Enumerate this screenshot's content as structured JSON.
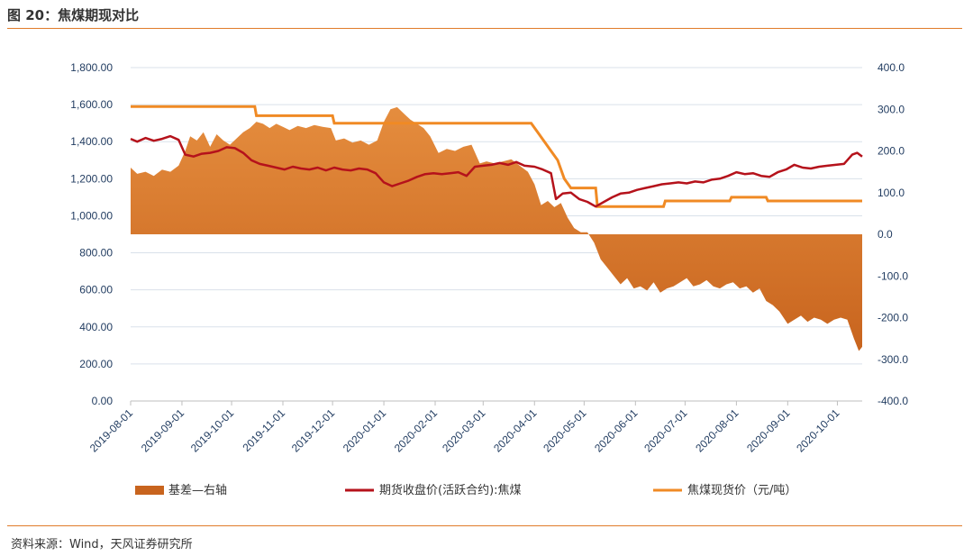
{
  "figure": {
    "title": "图 20：焦煤期现对比",
    "source": "资料来源：Wind，天风证券研究所"
  },
  "colors": {
    "basis": "#c8641e",
    "basis_light": "#e58d3e",
    "futures": "#b5121b",
    "spot": "#f08a24",
    "grid": "#d9e1ea",
    "rule": "#e07b2a"
  },
  "chart_data": {
    "type": "area+line",
    "left_axis": {
      "ylim": [
        0,
        1800
      ],
      "ticks": [
        "0.00",
        "200.00",
        "400.00",
        "600.00",
        "800.00",
        "1,000.00",
        "1,200.00",
        "1,400.00",
        "1,600.00",
        "1,800.00"
      ]
    },
    "right_axis": {
      "ylim": [
        -400,
        400
      ],
      "ticks": [
        "-400.0",
        "-300.0",
        "-200.0",
        "-100.0",
        "0.0",
        "100.0",
        "200.0",
        "300.0",
        "400.0"
      ]
    },
    "x_ticks": [
      "2019-08-01",
      "2019-09-01",
      "2019-10-01",
      "2019-11-01",
      "2019-12-01",
      "2020-01-01",
      "2020-02-01",
      "2020-03-01",
      "2020-04-01",
      "2020-05-01",
      "2020-06-01",
      "2020-07-01",
      "2020-08-01",
      "2020-09-01",
      "2020-10-01"
    ],
    "x_range": [
      "2019-08-01",
      "2020-10-16"
    ],
    "grid": true,
    "legend_position": "bottom",
    "legend": [
      "基差—右轴",
      "期货收盘价(活跃合约):焦煤",
      "焦煤现货价（元/吨）"
    ],
    "series": [
      {
        "name": "基差—右轴",
        "axis": "right",
        "kind": "area",
        "points": [
          [
            "2019-08-01",
            160
          ],
          [
            "2019-08-05",
            145
          ],
          [
            "2019-08-10",
            150
          ],
          [
            "2019-08-15",
            140
          ],
          [
            "2019-08-20",
            155
          ],
          [
            "2019-08-25",
            150
          ],
          [
            "2019-08-30",
            165
          ],
          [
            "2019-09-03",
            200
          ],
          [
            "2019-09-06",
            235
          ],
          [
            "2019-09-10",
            225
          ],
          [
            "2019-09-14",
            245
          ],
          [
            "2019-09-18",
            210
          ],
          [
            "2019-09-22",
            240
          ],
          [
            "2019-09-26",
            225
          ],
          [
            "2019-09-30",
            215
          ],
          [
            "2019-10-04",
            230
          ],
          [
            "2019-10-08",
            245
          ],
          [
            "2019-10-12",
            255
          ],
          [
            "2019-10-16",
            270
          ],
          [
            "2019-10-20",
            265
          ],
          [
            "2019-10-24",
            255
          ],
          [
            "2019-10-28",
            265
          ],
          [
            "2019-11-01",
            258
          ],
          [
            "2019-11-05",
            250
          ],
          [
            "2019-11-10",
            260
          ],
          [
            "2019-11-15",
            255
          ],
          [
            "2019-11-20",
            262
          ],
          [
            "2019-11-25",
            258
          ],
          [
            "2019-11-30",
            255
          ],
          [
            "2019-12-03",
            225
          ],
          [
            "2019-12-08",
            230
          ],
          [
            "2019-12-13",
            220
          ],
          [
            "2019-12-18",
            225
          ],
          [
            "2019-12-23",
            215
          ],
          [
            "2019-12-28",
            225
          ],
          [
            "2020-01-01",
            270
          ],
          [
            "2020-01-05",
            300
          ],
          [
            "2020-01-09",
            305
          ],
          [
            "2020-01-13",
            290
          ],
          [
            "2020-01-17",
            275
          ],
          [
            "2020-01-21",
            265
          ],
          [
            "2020-01-25",
            255
          ],
          [
            "2020-01-29",
            235
          ],
          [
            "2020-02-03",
            195
          ],
          [
            "2020-02-08",
            205
          ],
          [
            "2020-02-13",
            200
          ],
          [
            "2020-02-18",
            210
          ],
          [
            "2020-02-23",
            215
          ],
          [
            "2020-02-28",
            170
          ],
          [
            "2020-03-03",
            175
          ],
          [
            "2020-03-08",
            170
          ],
          [
            "2020-03-13",
            175
          ],
          [
            "2020-03-18",
            180
          ],
          [
            "2020-03-23",
            165
          ],
          [
            "2020-03-28",
            150
          ],
          [
            "2020-04-01",
            120
          ],
          [
            "2020-04-05",
            70
          ],
          [
            "2020-04-09",
            80
          ],
          [
            "2020-04-13",
            65
          ],
          [
            "2020-04-17",
            75
          ],
          [
            "2020-04-21",
            40
          ],
          [
            "2020-04-25",
            15
          ],
          [
            "2020-04-29",
            5
          ],
          [
            "2020-05-03",
            5
          ],
          [
            "2020-05-07",
            -20
          ],
          [
            "2020-05-11",
            -60
          ],
          [
            "2020-05-15",
            -80
          ],
          [
            "2020-05-19",
            -100
          ],
          [
            "2020-05-23",
            -120
          ],
          [
            "2020-05-27",
            -105
          ],
          [
            "2020-05-31",
            -130
          ],
          [
            "2020-06-04",
            -125
          ],
          [
            "2020-06-08",
            -135
          ],
          [
            "2020-06-12",
            -115
          ],
          [
            "2020-06-16",
            -140
          ],
          [
            "2020-06-20",
            -130
          ],
          [
            "2020-06-24",
            -125
          ],
          [
            "2020-06-28",
            -115
          ],
          [
            "2020-07-02",
            -105
          ],
          [
            "2020-07-06",
            -125
          ],
          [
            "2020-07-10",
            -120
          ],
          [
            "2020-07-14",
            -110
          ],
          [
            "2020-07-18",
            -125
          ],
          [
            "2020-07-22",
            -130
          ],
          [
            "2020-07-26",
            -120
          ],
          [
            "2020-07-30",
            -115
          ],
          [
            "2020-08-03",
            -130
          ],
          [
            "2020-08-07",
            -125
          ],
          [
            "2020-08-11",
            -140
          ],
          [
            "2020-08-15",
            -130
          ],
          [
            "2020-08-19",
            -160
          ],
          [
            "2020-08-23",
            -170
          ],
          [
            "2020-08-27",
            -185
          ],
          [
            "2020-09-01",
            -215
          ],
          [
            "2020-09-05",
            -205
          ],
          [
            "2020-09-09",
            -195
          ],
          [
            "2020-09-13",
            -210
          ],
          [
            "2020-09-17",
            -200
          ],
          [
            "2020-09-21",
            -205
          ],
          [
            "2020-09-25",
            -215
          ],
          [
            "2020-09-29",
            -205
          ],
          [
            "2020-10-03",
            -200
          ],
          [
            "2020-10-07",
            -205
          ],
          [
            "2020-10-11",
            -250
          ],
          [
            "2020-10-14",
            -280
          ],
          [
            "2020-10-16",
            -270
          ]
        ]
      },
      {
        "name": "期货收盘价(活跃合约):焦煤",
        "axis": "left",
        "kind": "line",
        "points": [
          [
            "2019-08-01",
            1415
          ],
          [
            "2019-08-05",
            1400
          ],
          [
            "2019-08-10",
            1420
          ],
          [
            "2019-08-15",
            1405
          ],
          [
            "2019-08-20",
            1415
          ],
          [
            "2019-08-25",
            1430
          ],
          [
            "2019-08-30",
            1410
          ],
          [
            "2019-09-03",
            1330
          ],
          [
            "2019-09-08",
            1320
          ],
          [
            "2019-09-13",
            1335
          ],
          [
            "2019-09-18",
            1340
          ],
          [
            "2019-09-23",
            1350
          ],
          [
            "2019-09-28",
            1370
          ],
          [
            "2019-10-03",
            1365
          ],
          [
            "2019-10-08",
            1340
          ],
          [
            "2019-10-13",
            1300
          ],
          [
            "2019-10-18",
            1280
          ],
          [
            "2019-10-23",
            1270
          ],
          [
            "2019-10-28",
            1260
          ],
          [
            "2019-11-02",
            1250
          ],
          [
            "2019-11-07",
            1265
          ],
          [
            "2019-11-12",
            1255
          ],
          [
            "2019-11-17",
            1250
          ],
          [
            "2019-11-22",
            1260
          ],
          [
            "2019-11-27",
            1245
          ],
          [
            "2019-12-02",
            1260
          ],
          [
            "2019-12-07",
            1250
          ],
          [
            "2019-12-12",
            1245
          ],
          [
            "2019-12-17",
            1255
          ],
          [
            "2019-12-22",
            1250
          ],
          [
            "2019-12-27",
            1230
          ],
          [
            "2020-01-01",
            1180
          ],
          [
            "2020-01-06",
            1160
          ],
          [
            "2020-01-11",
            1175
          ],
          [
            "2020-01-16",
            1190
          ],
          [
            "2020-01-21",
            1210
          ],
          [
            "2020-01-26",
            1225
          ],
          [
            "2020-01-31",
            1230
          ],
          [
            "2020-02-05",
            1225
          ],
          [
            "2020-02-10",
            1230
          ],
          [
            "2020-02-15",
            1235
          ],
          [
            "2020-02-20",
            1215
          ],
          [
            "2020-02-25",
            1265
          ],
          [
            "2020-03-01",
            1270
          ],
          [
            "2020-03-06",
            1275
          ],
          [
            "2020-03-11",
            1285
          ],
          [
            "2020-03-16",
            1275
          ],
          [
            "2020-03-21",
            1290
          ],
          [
            "2020-03-26",
            1270
          ],
          [
            "2020-04-01",
            1265
          ],
          [
            "2020-04-06",
            1250
          ],
          [
            "2020-04-11",
            1230
          ],
          [
            "2020-04-14",
            1090
          ],
          [
            "2020-04-18",
            1120
          ],
          [
            "2020-04-23",
            1125
          ],
          [
            "2020-04-28",
            1090
          ],
          [
            "2020-05-03",
            1075
          ],
          [
            "2020-05-08",
            1050
          ],
          [
            "2020-05-13",
            1075
          ],
          [
            "2020-05-18",
            1100
          ],
          [
            "2020-05-23",
            1120
          ],
          [
            "2020-05-28",
            1125
          ],
          [
            "2020-06-02",
            1140
          ],
          [
            "2020-06-07",
            1150
          ],
          [
            "2020-06-12",
            1160
          ],
          [
            "2020-06-17",
            1170
          ],
          [
            "2020-06-22",
            1175
          ],
          [
            "2020-06-27",
            1180
          ],
          [
            "2020-07-02",
            1175
          ],
          [
            "2020-07-07",
            1185
          ],
          [
            "2020-07-12",
            1180
          ],
          [
            "2020-07-17",
            1195
          ],
          [
            "2020-07-22",
            1200
          ],
          [
            "2020-07-27",
            1215
          ],
          [
            "2020-08-01",
            1235
          ],
          [
            "2020-08-06",
            1225
          ],
          [
            "2020-08-11",
            1230
          ],
          [
            "2020-08-16",
            1215
          ],
          [
            "2020-08-21",
            1210
          ],
          [
            "2020-08-26",
            1235
          ],
          [
            "2020-08-31",
            1250
          ],
          [
            "2020-09-05",
            1275
          ],
          [
            "2020-09-10",
            1260
          ],
          [
            "2020-09-15",
            1255
          ],
          [
            "2020-09-20",
            1265
          ],
          [
            "2020-09-25",
            1270
          ],
          [
            "2020-09-30",
            1275
          ],
          [
            "2020-10-05",
            1280
          ],
          [
            "2020-10-10",
            1330
          ],
          [
            "2020-10-13",
            1340
          ],
          [
            "2020-10-16",
            1320
          ]
        ]
      },
      {
        "name": "焦煤现货价（元/吨）",
        "axis": "left",
        "kind": "step",
        "points": [
          [
            "2019-08-01",
            1590
          ],
          [
            "2019-10-15",
            1590
          ],
          [
            "2019-10-16",
            1540
          ],
          [
            "2019-12-01",
            1540
          ],
          [
            "2019-12-02",
            1500
          ],
          [
            "2020-03-30",
            1500
          ],
          [
            "2020-04-03",
            1450
          ],
          [
            "2020-04-07",
            1400
          ],
          [
            "2020-04-11",
            1350
          ],
          [
            "2020-04-15",
            1300
          ],
          [
            "2020-04-19",
            1200
          ],
          [
            "2020-04-23",
            1150
          ],
          [
            "2020-05-08",
            1150
          ],
          [
            "2020-05-09",
            1050
          ],
          [
            "2020-06-18",
            1050
          ],
          [
            "2020-06-19",
            1080
          ],
          [
            "2020-07-28",
            1080
          ],
          [
            "2020-07-29",
            1100
          ],
          [
            "2020-08-19",
            1100
          ],
          [
            "2020-08-20",
            1080
          ],
          [
            "2020-10-16",
            1080
          ]
        ]
      }
    ]
  }
}
